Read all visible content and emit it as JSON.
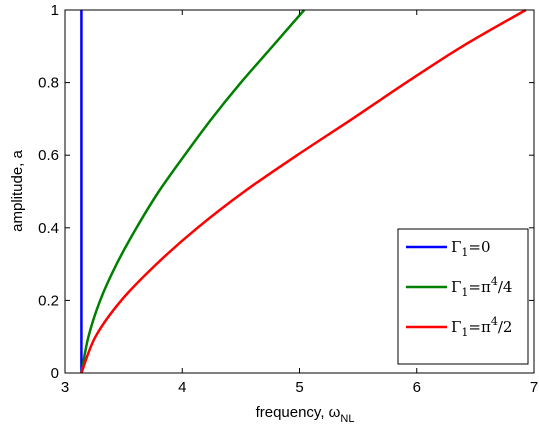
{
  "chart_data": {
    "type": "line",
    "title": "",
    "xlabel": "frequency, ω",
    "xlabel_sub": "NL",
    "ylabel": "amplitude, a",
    "xlim": [
      3,
      7
    ],
    "ylim": [
      0,
      1
    ],
    "x_ticks": [
      "3",
      "4",
      "5",
      "6",
      "7"
    ],
    "y_ticks": [
      "0",
      "0.2",
      "0.4",
      "0.6",
      "0.8",
      "1"
    ],
    "grid": false,
    "legend_position": "bottom-right",
    "series": [
      {
        "name": "Γ",
        "name_sub": "1",
        "name_rest": "=0",
        "color": "#0000ff",
        "points": [
          [
            3.14,
            0.0
          ],
          [
            3.14,
            1.0
          ]
        ]
      },
      {
        "name": "Γ",
        "name_sub": "1",
        "name_rest": "=π",
        "name_sup": "4",
        "name_tail": "/4",
        "color": "#008000",
        "points": [
          [
            3.14,
            0.0
          ],
          [
            3.2,
            0.1
          ],
          [
            3.3,
            0.2
          ],
          [
            3.44,
            0.3
          ],
          [
            3.61,
            0.4
          ],
          [
            3.8,
            0.5
          ],
          [
            4.02,
            0.6
          ],
          [
            4.25,
            0.7
          ],
          [
            4.5,
            0.8
          ],
          [
            4.77,
            0.9
          ],
          [
            5.04,
            1.0
          ]
        ]
      },
      {
        "name": "Γ",
        "name_sub": "1",
        "name_rest": "=π",
        "name_sup": "4",
        "name_tail": "/2",
        "color": "#ff0000",
        "points": [
          [
            3.14,
            0.0
          ],
          [
            3.26,
            0.1
          ],
          [
            3.48,
            0.2
          ],
          [
            3.78,
            0.3
          ],
          [
            4.13,
            0.4
          ],
          [
            4.53,
            0.5
          ],
          [
            4.98,
            0.6
          ],
          [
            5.45,
            0.7
          ],
          [
            5.91,
            0.8
          ],
          [
            6.39,
            0.9
          ],
          [
            6.93,
            1.0
          ]
        ]
      }
    ]
  }
}
